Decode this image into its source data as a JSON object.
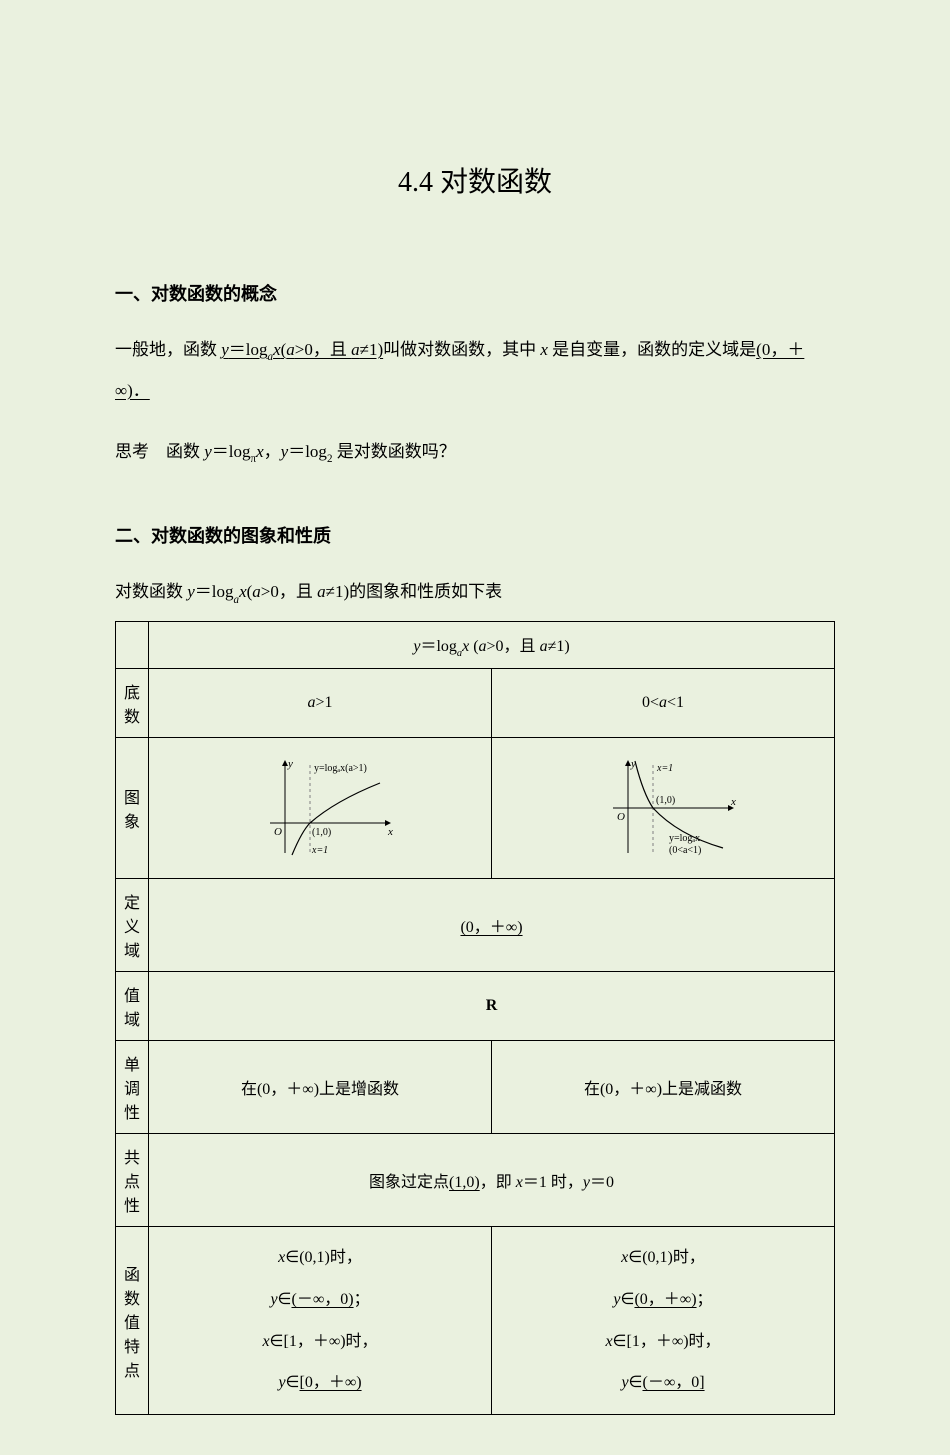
{
  "title": "4.4  对数函数",
  "section1": {
    "heading": "一、对数函数的概念",
    "para_intro_pre": "一般地，函数 ",
    "def_underline_html": "<span class=\"italic\">y</span>＝log<span class=\"sub italic\">a</span><span class=\"italic\">x</span>(<span class=\"italic\">a</span>>0，且 <span class=\"italic\">a</span>≠1)",
    "para_intro_post": "叫做对数函数，其中 <span class=\"italic\">x</span> 是自变量，函数的定义域是",
    "domain_underline": "(0，＋∞)．",
    "think_label": "思考　",
    "think_text": "函数 <span class=\"italic\">y</span>＝log<span class=\"sub\">π</span><span class=\"italic\">x</span>，<span class=\"italic\">y</span>＝log<span class=\"sub\">2</span> 是对数函数吗？"
  },
  "section2": {
    "heading": "二、对数函数的图象和性质",
    "intro": "对数函数 <span class=\"italic\">y</span>＝log<span class=\"sub italic\">a</span><span class=\"italic\">x</span>(<span class=\"italic\">a</span>>0，且 <span class=\"italic\">a</span>≠1)的图象和性质如下表"
  },
  "table": {
    "header_formula": "<span class=\"italic\">y</span>＝log<span class=\"sub italic\">a</span><span class=\"italic\">x</span> (<span class=\"italic\">a</span>>0，且 <span class=\"italic\">a</span>≠1)",
    "row_base_label": "底数",
    "base_left": "<span class=\"italic\">a</span>>1",
    "base_right": "0<<span class=\"italic\">a</span><1",
    "row_graph_label": "图象",
    "graph_left": {
      "axis_color": "#000000",
      "curve_color": "#000000",
      "dash_color": "#808080",
      "y_label": "y",
      "x_label": "x",
      "o_label": "O",
      "pt_label": "(1,0)",
      "dash_label": "x=1",
      "curve_label": "y=logₐx(a>1)"
    },
    "graph_right": {
      "axis_color": "#000000",
      "curve_color": "#000000",
      "dash_color": "#808080",
      "y_label": "y",
      "x_label": "x",
      "o_label": "O",
      "pt_label": "(1,0)",
      "dash_label": "x=1",
      "curve_label1": "y=logₐx",
      "curve_label2": "(0<a<1)"
    },
    "row_domain_label": "定义域",
    "domain_text": "(0，＋∞)",
    "row_range_label": "值域",
    "range_text": "R",
    "row_mono_label": "单调性",
    "mono_left": "在(0，＋∞)上是增函数",
    "mono_right": "在(0，＋∞)上是减函数",
    "row_common_label": "共点性",
    "common_text_pre": "图象过定点",
    "common_text_pt": "(1,0)",
    "common_text_post": "，即 <span class=\"italic\">x</span>＝1 时，<span class=\"italic\">y</span>＝0",
    "row_feat_label": "函数值特点",
    "feat_left": {
      "l1": "<span class=\"italic\">x</span>∈(0,1)时，",
      "l2_pre": "<span class=\"italic\">y</span>∈",
      "l2_u": "(－∞，0)",
      "l2_post": "；",
      "l3": "<span class=\"italic\">x</span>∈[1，＋∞)时，",
      "l4_pre": "<span class=\"italic\">y</span>∈",
      "l4_u": "[0，＋∞)"
    },
    "feat_right": {
      "l1": "<span class=\"italic\">x</span>∈(0,1)时，",
      "l2_pre": "<span class=\"italic\">y</span>∈",
      "l2_u": "(0，＋∞)",
      "l2_post": "；",
      "l3": "<span class=\"italic\">x</span>∈[1，＋∞)时，",
      "l4_pre": "<span class=\"italic\">y</span>∈",
      "l4_u": "(－∞，0]"
    }
  }
}
